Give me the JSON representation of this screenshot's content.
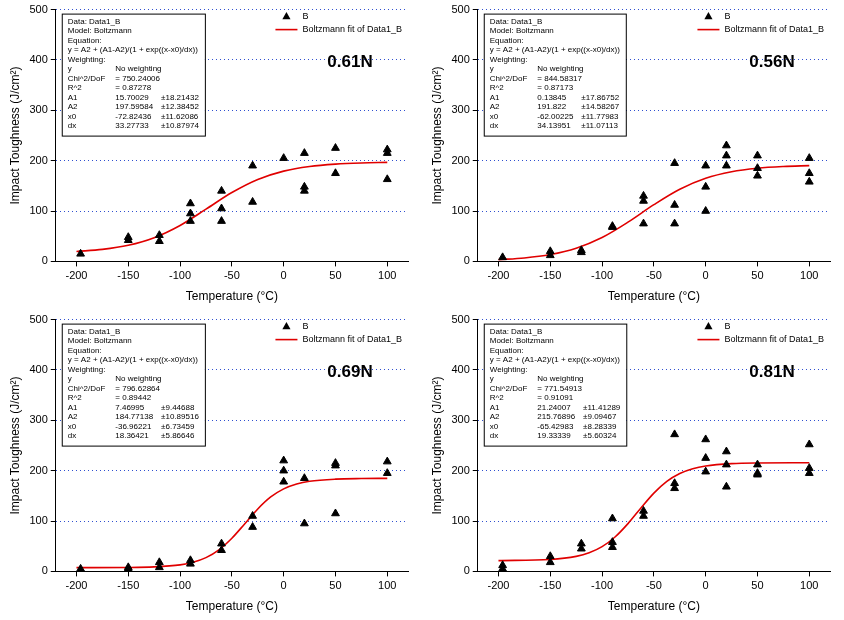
{
  "chart_data": [
    {
      "type": "scatter",
      "annotations": [
        "0.61N"
      ],
      "x_label": "Temperature (°C)",
      "y_label": "Impact Toughness (J/cm²)",
      "xlim": [
        -220,
        120
      ],
      "xticks": [
        -200,
        -150,
        -100,
        -50,
        0,
        50,
        100
      ],
      "ylim": [
        0,
        500
      ],
      "yticks": [
        0,
        100,
        200,
        300,
        400,
        500
      ],
      "grid": true,
      "legend": "upper right",
      "series": [
        {
          "name": "B",
          "color": "#000000",
          "marker": "triangle",
          "x": [
            -196,
            -150,
            -150,
            -120,
            -120,
            -90,
            -90,
            -90,
            -60,
            -60,
            -60,
            -30,
            -30,
            0,
            20,
            20,
            20,
            50,
            50,
            100,
            100,
            100
          ],
          "values": [
            15,
            48,
            42,
            52,
            40,
            115,
            95,
            80,
            140,
            105,
            80,
            190,
            118,
            205,
            215,
            148,
            140,
            225,
            175,
            222,
            215,
            163
          ]
        },
        {
          "name": "Boltzmann fit of Data1_B",
          "type": "line",
          "color": "#e00000",
          "marker": "none",
          "line_style": "solid",
          "x": [
            -200,
            -175,
            -150,
            -125,
            -100,
            -75,
            -50,
            -25,
            0,
            25,
            50,
            75,
            100
          ],
          "values": [
            19.6,
            23.8,
            32.0,
            47.1,
            71.4,
            103.7,
            136.7,
            162.7,
            179.3,
            188.5,
            193.2,
            195.5,
            196.6
          ]
        }
      ],
      "fit_report": [
        [
          "Data: Data1_B"
        ],
        [
          "Model: Boltzmann"
        ],
        [
          "Equation:"
        ],
        [
          "y = A2 + (A1-A2)/(1 + exp((x-x0)/dx))"
        ],
        [
          "Weighting:"
        ],
        [
          "y",
          "No weighting"
        ],
        [
          "Chi^2/DoF",
          "= 750.24006"
        ],
        [
          "R^2",
          "= 0.87278"
        ],
        [
          "A1",
          "15.70029",
          "±18.21432"
        ],
        [
          "A2",
          "197.59584",
          "±12.38452"
        ],
        [
          "x0",
          "-72.82436",
          "±11.62086"
        ],
        [
          "dx",
          "33.27733",
          "±10.87974"
        ]
      ]
    },
    {
      "type": "scatter",
      "annotations": [
        "0.56N"
      ],
      "x_label": "Temperature (°C)",
      "y_label": "Impact Toughness (J/cm²)",
      "xlim": [
        -220,
        120
      ],
      "xticks": [
        -200,
        -150,
        -100,
        -50,
        0,
        50,
        100
      ],
      "ylim": [
        0,
        500
      ],
      "yticks": [
        0,
        100,
        200,
        300,
        400,
        500
      ],
      "grid": true,
      "legend": "upper right",
      "series": [
        {
          "name": "B",
          "color": "#000000",
          "marker": "triangle",
          "x": [
            -196,
            -150,
            -150,
            -120,
            -120,
            -90,
            -90,
            -60,
            -60,
            -60,
            -30,
            -30,
            -30,
            0,
            0,
            0,
            20,
            20,
            20,
            50,
            50,
            50,
            100,
            100,
            100
          ],
          "values": [
            8,
            20,
            12,
            22,
            18,
            70,
            68,
            130,
            120,
            75,
            195,
            112,
            75,
            190,
            148,
            100,
            230,
            210,
            190,
            210,
            185,
            170,
            205,
            175,
            158
          ]
        },
        {
          "name": "Boltzmann fit of Data1_B",
          "type": "line",
          "color": "#e00000",
          "marker": "none",
          "line_style": "solid",
          "x": [
            -200,
            -175,
            -150,
            -125,
            -100,
            -75,
            -50,
            -25,
            0,
            25,
            50,
            75,
            100
          ],
          "values": [
            3.5,
            6.9,
            13.7,
            26.3,
            47.5,
            77.9,
            112.6,
            143.3,
            165.0,
            177.9,
            184.9,
            188.4,
            190.2
          ]
        }
      ],
      "fit_report": [
        [
          "Data: Data1_B"
        ],
        [
          "Model: Boltzmann"
        ],
        [
          "Equation:"
        ],
        [
          "y = A2 + (A1-A2)/(1 + exp((x-x0)/dx))"
        ],
        [
          "Weighting:"
        ],
        [
          "y",
          "No weighting"
        ],
        [
          "Chi^2/DoF",
          "= 844.58317"
        ],
        [
          "R^2",
          "= 0.87173"
        ],
        [
          "A1",
          "0.13845",
          "±17.86752"
        ],
        [
          "A2",
          "191.822",
          "±14.58267"
        ],
        [
          "x0",
          "-62.00225",
          "±11.77983"
        ],
        [
          "dx",
          "34.13951",
          "±11.07113"
        ]
      ]
    },
    {
      "type": "scatter",
      "annotations": [
        "0.69N"
      ],
      "x_label": "Temperature (°C)",
      "y_label": "Impact Toughness (J/cm²)",
      "xlim": [
        -220,
        120
      ],
      "xticks": [
        -200,
        -150,
        -100,
        -50,
        0,
        50,
        100
      ],
      "ylim": [
        0,
        500
      ],
      "yticks": [
        0,
        100,
        200,
        300,
        400,
        500
      ],
      "grid": true,
      "legend": "upper right",
      "series": [
        {
          "name": "B",
          "color": "#000000",
          "marker": "triangle",
          "x": [
            -196,
            -150,
            -150,
            -120,
            -120,
            -90,
            -90,
            -60,
            -60,
            -30,
            -30,
            0,
            0,
            0,
            20,
            20,
            50,
            50,
            50,
            100,
            100
          ],
          "values": [
            5,
            8,
            5,
            18,
            8,
            22,
            15,
            55,
            42,
            110,
            88,
            220,
            200,
            178,
            185,
            95,
            215,
            210,
            115,
            218,
            195
          ]
        },
        {
          "name": "Boltzmann fit of Data1_B",
          "type": "line",
          "color": "#e00000",
          "marker": "none",
          "line_style": "solid",
          "x": [
            -200,
            -150,
            -125,
            -100,
            -87.5,
            -75,
            -62.5,
            -50,
            -37.5,
            -25,
            -12.5,
            0,
            12.5,
            25,
            50,
            75,
            100
          ],
          "values": [
            7.5,
            7.8,
            8.9,
            13.0,
            18.1,
            27.3,
            42.8,
            65.9,
            94.8,
            124.0,
            147.8,
            163.9,
            173.5,
            178.9,
            183.2,
            184.4,
            184.7
          ]
        }
      ],
      "fit_report": [
        [
          "Data: Data1_B"
        ],
        [
          "Model: Boltzmann"
        ],
        [
          "Equation:"
        ],
        [
          "y = A2 + (A1-A2)/(1 + exp((x-x0)/dx))"
        ],
        [
          "Weighting:"
        ],
        [
          "y",
          "No weighting"
        ],
        [
          "Chi^2/DoF",
          "= 796.62864"
        ],
        [
          "R^2",
          "= 0.89442"
        ],
        [
          "A1",
          "7.46995",
          "±9.44688"
        ],
        [
          "A2",
          "184.77138",
          "±10.89516"
        ],
        [
          "x0",
          "-36.96221",
          "±6.73459"
        ],
        [
          "dx",
          "18.36421",
          "±5.86646"
        ]
      ]
    },
    {
      "type": "scatter",
      "annotations": [
        "0.81N"
      ],
      "x_label": "Temperature (°C)",
      "y_label": "Impact Toughness (J/cm²)",
      "xlim": [
        -220,
        120
      ],
      "xticks": [
        -200,
        -150,
        -100,
        -50,
        0,
        50,
        100
      ],
      "ylim": [
        0,
        500
      ],
      "yticks": [
        0,
        100,
        200,
        300,
        400,
        500
      ],
      "grid": true,
      "legend": "upper right",
      "series": [
        {
          "name": "B",
          "color": "#000000",
          "marker": "triangle",
          "x": [
            -196,
            -196,
            -150,
            -150,
            -120,
            -120,
            -90,
            -90,
            -90,
            -60,
            -60,
            -30,
            -30,
            -30,
            0,
            0,
            0,
            20,
            20,
            20,
            50,
            50,
            50,
            100,
            100,
            100
          ],
          "values": [
            12,
            5,
            30,
            18,
            55,
            45,
            105,
            58,
            48,
            120,
            110,
            272,
            175,
            165,
            262,
            225,
            198,
            238,
            212,
            168,
            212,
            195,
            192,
            252,
            205,
            195
          ]
        },
        {
          "name": "Boltzmann fit of Data1_B",
          "type": "line",
          "color": "#e00000",
          "marker": "none",
          "line_style": "solid",
          "x": [
            -200,
            -150,
            -125,
            -112.5,
            -100,
            -87.5,
            -75,
            -62.5,
            -50,
            -37.5,
            -25,
            -12.5,
            0,
            25,
            50,
            100
          ],
          "values": [
            21.4,
            23.7,
            29.8,
            36.9,
            49.1,
            68.3,
            94.9,
            125.9,
            155.4,
            178.7,
            194.4,
            203.9,
            209.4,
            214.0,
            215.3,
            215.7
          ]
        }
      ],
      "fit_report": [
        [
          "Data: Data1_B"
        ],
        [
          "Model: Boltzmann"
        ],
        [
          "Equation:"
        ],
        [
          "y = A2 + (A1-A2)/(1 + exp((x-x0)/dx))"
        ],
        [
          "Weighting:"
        ],
        [
          "y",
          "No weighting"
        ],
        [
          "Chi^2/DoF",
          "= 771.54913"
        ],
        [
          "R^2",
          "= 0.91091"
        ],
        [
          "A1",
          "21.24007",
          "±11.41289"
        ],
        [
          "A2",
          "215.76896",
          "±9.09467"
        ],
        [
          "x0",
          "-65.42983",
          "±8.28339"
        ],
        [
          "dx",
          "19.33339",
          "±5.60324"
        ]
      ]
    }
  ]
}
